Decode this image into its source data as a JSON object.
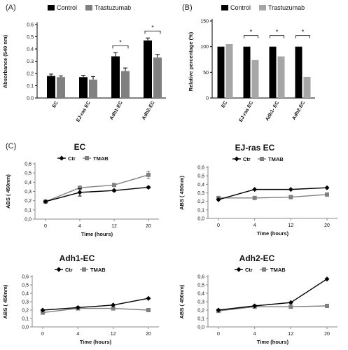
{
  "panels": {
    "a": "(A)",
    "b": "(B)",
    "c": "(C)"
  },
  "chart_data": [
    {
      "id": "A",
      "type": "bar",
      "ylabel": "Absorbance (540 nm)",
      "ylim": [
        0,
        0.6
      ],
      "yticks": [
        "0.0",
        "0.1",
        "0.2",
        "0.3",
        "0.4",
        "0.5",
        "0.6"
      ],
      "categories": [
        "EC",
        "EJ-ras EC",
        "Adh1-EC",
        "Adh2-EC"
      ],
      "series": [
        {
          "name": "Control",
          "color": "#000000",
          "values": [
            0.18,
            0.17,
            0.34,
            0.47
          ],
          "err": [
            0.015,
            0.015,
            0.03,
            0.02
          ]
        },
        {
          "name": "Trastuzumab",
          "color": "#808080",
          "values": [
            0.17,
            0.15,
            0.22,
            0.33
          ],
          "err": [
            0.01,
            0.025,
            0.025,
            0.025
          ]
        }
      ],
      "significance": [
        "",
        "",
        "*",
        "*"
      ],
      "legend": "top"
    },
    {
      "id": "B",
      "type": "bar",
      "ylabel": "Relative percentage (%)",
      "ylim": [
        0,
        150
      ],
      "yticks": [
        "0",
        "50",
        "100",
        "150"
      ],
      "categories": [
        "EC",
        "EJ-ras EC",
        "Adh1- EC",
        "Adh2-EC"
      ],
      "series": [
        {
          "name": "Control",
          "color": "#000000",
          "values": [
            100,
            100,
            100,
            100
          ]
        },
        {
          "name": "Trastuzumab",
          "color": "#a6a6a6",
          "values": [
            105,
            74,
            81,
            41
          ]
        }
      ],
      "significance": [
        "",
        "*",
        "*",
        "*"
      ],
      "legend": "top"
    },
    {
      "id": "C1",
      "type": "line",
      "title": "EC",
      "xlabel": "Time (hours)",
      "ylabel": "ABS ( 450nm)",
      "x": [
        "0",
        "4",
        "12",
        "20"
      ],
      "ylim": [
        0,
        0.6
      ],
      "yticks": [
        "0,0",
        "0,1",
        "0,2",
        "0,3",
        "0,4",
        "0,5",
        "0,6"
      ],
      "series": [
        {
          "name": "Ctr",
          "marker": "diamond",
          "color": "#000000",
          "values": [
            0.19,
            0.29,
            0.31,
            0.345
          ],
          "err": [
            0.01,
            0.04,
            0.01,
            0.01
          ]
        },
        {
          "name": "TMAB",
          "marker": "square",
          "color": "#808080",
          "values": [
            0.19,
            0.34,
            0.37,
            0.48
          ],
          "err": [
            0.01,
            0.01,
            0.01,
            0.04
          ]
        }
      ]
    },
    {
      "id": "C2",
      "type": "line",
      "title": "EJ-ras EC",
      "xlabel": "Time (hours)",
      "ylabel": "ABS ( 450nm)",
      "x": [
        "0",
        "4",
        "12",
        "20"
      ],
      "ylim": [
        0,
        0.6
      ],
      "yticks": [
        "0,0",
        "0,1",
        "0,2",
        "0,3",
        "0,4",
        "0,5",
        "0,6"
      ],
      "series": [
        {
          "name": "Ctr",
          "marker": "diamond",
          "color": "#000000",
          "values": [
            0.22,
            0.34,
            0.34,
            0.36
          ]
        },
        {
          "name": "TMAB",
          "marker": "square",
          "color": "#808080",
          "values": [
            0.24,
            0.24,
            0.25,
            0.28
          ]
        }
      ]
    },
    {
      "id": "C3",
      "type": "line",
      "title": "Adh1-EC",
      "xlabel": "Time (hours)",
      "ylabel": "ABS ( 450nm)",
      "x": [
        "0",
        "4",
        "12",
        "20"
      ],
      "ylim": [
        0,
        0.6
      ],
      "yticks": [
        "0,0",
        "0,1",
        "0,2",
        "0,3",
        "0,4",
        "0,5",
        "0,6"
      ],
      "series": [
        {
          "name": "Ctr",
          "marker": "diamond",
          "color": "#000000",
          "values": [
            0.2,
            0.23,
            0.26,
            0.34
          ]
        },
        {
          "name": "TMAB",
          "marker": "square",
          "color": "#808080",
          "values": [
            0.17,
            0.22,
            0.22,
            0.2
          ]
        }
      ]
    },
    {
      "id": "C4",
      "type": "line",
      "title": "Adh2-EC",
      "xlabel": "Time (hours)",
      "ylabel": "ABS ( 450nm)",
      "x": [
        "0",
        "4",
        "12",
        "20"
      ],
      "ylim": [
        0,
        0.6
      ],
      "yticks": [
        "0,0",
        "0,1",
        "0,2",
        "0,3",
        "0,4",
        "0,5",
        "0,6"
      ],
      "series": [
        {
          "name": "Ctr",
          "marker": "diamond",
          "color": "#000000",
          "values": [
            0.2,
            0.25,
            0.29,
            0.57
          ]
        },
        {
          "name": "TMAB",
          "marker": "square",
          "color": "#808080",
          "values": [
            0.19,
            0.24,
            0.24,
            0.25
          ]
        }
      ]
    }
  ]
}
